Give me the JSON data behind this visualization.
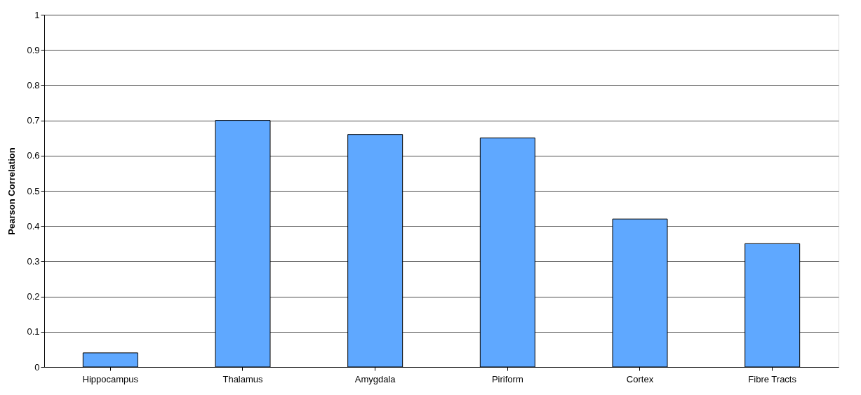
{
  "chart_data": {
    "type": "bar",
    "ylabel": "Pearson Correlation",
    "categories": [
      "Hippocampus",
      "Thalamus",
      "Amygdala",
      "Piriform",
      "Cortex",
      "Fibre Tracts"
    ],
    "values": [
      0.04,
      0.7,
      0.66,
      0.65,
      0.42,
      0.35
    ],
    "color": "#5fa8ff",
    "ylim": [
      0,
      1
    ],
    "yticks": [
      0,
      0.1,
      0.2,
      0.3,
      0.4,
      0.5,
      0.6,
      0.7,
      0.8,
      0.9,
      1
    ],
    "grid": "y"
  }
}
